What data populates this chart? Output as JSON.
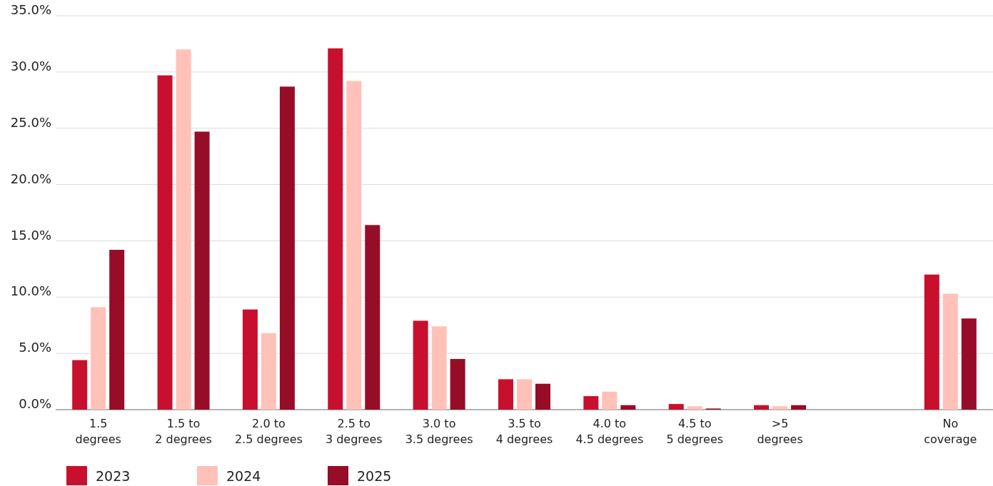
{
  "chart_data": {
    "type": "bar",
    "categories": [
      "1.5 degrees",
      "1.5 to 2 degrees",
      "2.0 to 2.5 degrees",
      "2.5 to 3 degrees",
      "3.0 to 3.5 degrees",
      "3.5 to 4 degrees",
      "4.0 to 4.5 degrees",
      "4.5 to 5 degrees",
      ">5 degrees",
      null,
      "No coverage"
    ],
    "series": [
      {
        "name": "2023",
        "color": "#c8102e",
        "values": [
          4.4,
          29.7,
          8.9,
          32.1,
          7.9,
          2.7,
          1.2,
          0.5,
          0.4,
          null,
          12.0
        ]
      },
      {
        "name": "2024",
        "color": "#ffc1b8",
        "values": [
          9.1,
          32.0,
          6.8,
          29.2,
          7.4,
          2.7,
          1.6,
          0.3,
          0.3,
          null,
          10.3
        ]
      },
      {
        "name": "2025",
        "color": "#970c27",
        "values": [
          14.2,
          24.7,
          28.7,
          16.4,
          4.5,
          2.3,
          0.4,
          0.1,
          0.4,
          null,
          8.1
        ]
      }
    ],
    "ylim": [
      0,
      35
    ],
    "yticks": [
      {
        "value": 0,
        "label": "0.0%"
      },
      {
        "value": 5,
        "label": "5.0%"
      },
      {
        "value": 10,
        "label": "10.0%"
      },
      {
        "value": 15,
        "label": "15.0%"
      },
      {
        "value": 20,
        "label": "20.0%"
      },
      {
        "value": 25,
        "label": "25.0%"
      },
      {
        "value": 30,
        "label": "30.0%"
      },
      {
        "value": 35,
        "label": "35.0%"
      }
    ],
    "grid": "y",
    "legend": "bottom left"
  }
}
